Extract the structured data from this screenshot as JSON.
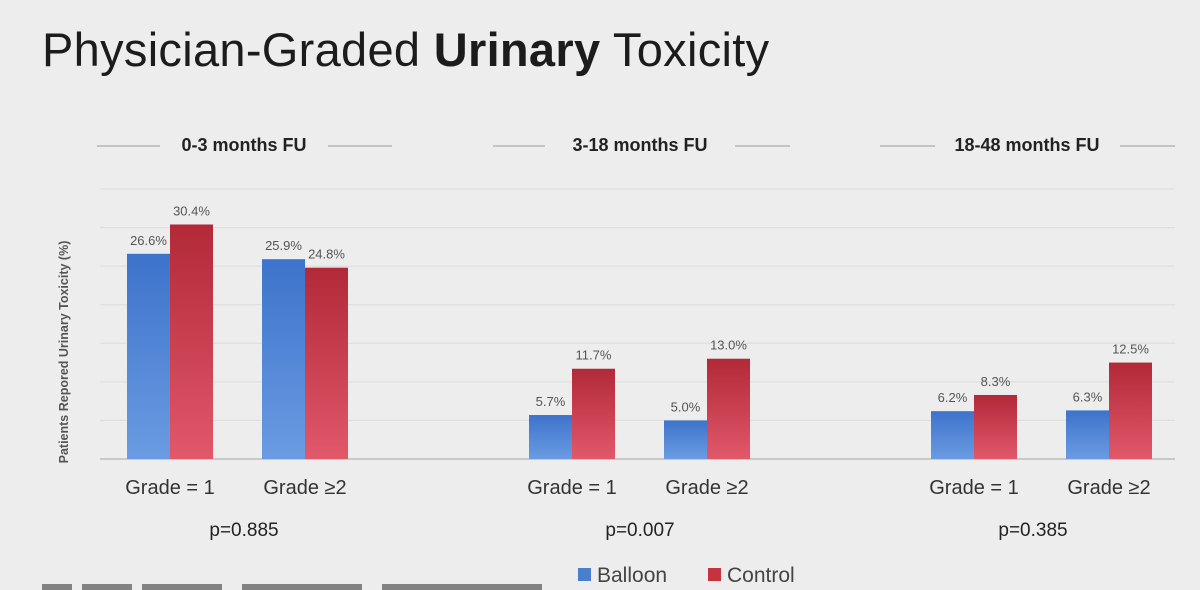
{
  "title": {
    "part1": "Physician-Graded ",
    "bold": "Urinary",
    "part2": " Toxicity"
  },
  "chart_data": {
    "type": "bar",
    "ylabel": "Patients Repored Urinary Toxicity (%)",
    "ylim": [
      0,
      35
    ],
    "grid": true,
    "legend_position": "bottom",
    "colors": {
      "Balloon": "#4a7fd0",
      "Control": "#c8323f"
    },
    "series_names": [
      "Balloon",
      "Control"
    ],
    "categories": [
      "Grade = 1",
      "Grade ≥2"
    ],
    "panels": [
      {
        "title": "0-3 months FU",
        "p_value": "p=0.885",
        "series": [
          {
            "name": "Balloon",
            "values": [
              26.6,
              25.9
            ],
            "labels": [
              "26.6%",
              "25.9%"
            ]
          },
          {
            "name": "Control",
            "values": [
              30.4,
              24.8
            ],
            "labels": [
              "30.4%",
              "24.8%"
            ]
          }
        ]
      },
      {
        "title": "3-18 months FU",
        "p_value": "p=0.007",
        "series": [
          {
            "name": "Balloon",
            "values": [
              5.7,
              5.0
            ],
            "labels": [
              "5.7%",
              "5.0%"
            ]
          },
          {
            "name": "Control",
            "values": [
              11.7,
              13.0
            ],
            "labels": [
              "11.7%",
              "13.0%"
            ]
          }
        ]
      },
      {
        "title": "18-48 months FU",
        "p_value": "p=0.385",
        "series": [
          {
            "name": "Balloon",
            "values": [
              6.2,
              6.3
            ],
            "labels": [
              "6.2%",
              "6.3%"
            ]
          },
          {
            "name": "Control",
            "values": [
              8.3,
              12.5
            ],
            "labels": [
              "8.3%",
              "12.5%"
            ]
          }
        ]
      }
    ]
  }
}
